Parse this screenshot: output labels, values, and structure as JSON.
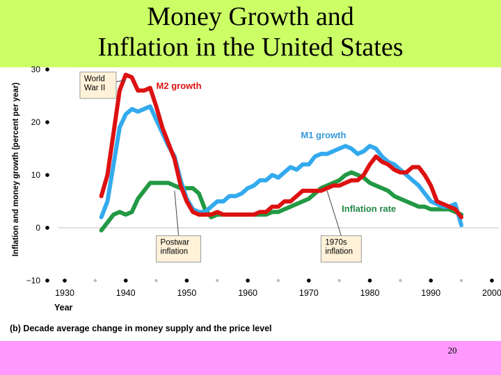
{
  "slide": {
    "title_line1": "Money Growth and",
    "title_line2": "Inflation in the United States",
    "caption": "(b) Decade average change in money supply and the price level",
    "slide_number": "20"
  },
  "chart_data": {
    "type": "line",
    "title": "Money Growth and Inflation in the United States",
    "xlabel": "Year",
    "ylabel": "Inflation and money growth (percent per year)",
    "xlim": [
      1925,
      2000
    ],
    "ylim": [
      -10,
      30
    ],
    "x_ticks": [
      1930,
      1940,
      1950,
      1960,
      1970,
      1980,
      1990,
      2000
    ],
    "y_ticks": [
      -10,
      0,
      10,
      20,
      30
    ],
    "grid": "zero-line",
    "series": [
      {
        "name": "M2 growth",
        "color": "#dd1111",
        "points": [
          [
            1936,
            6
          ],
          [
            1937,
            10
          ],
          [
            1938,
            18
          ],
          [
            1939,
            26
          ],
          [
            1940,
            29
          ],
          [
            1941,
            28.5
          ],
          [
            1942,
            26
          ],
          [
            1943,
            26
          ],
          [
            1944,
            26.5
          ],
          [
            1945,
            23
          ],
          [
            1946,
            19
          ],
          [
            1947,
            16
          ],
          [
            1948,
            13
          ],
          [
            1949,
            8
          ],
          [
            1950,
            5
          ],
          [
            1951,
            3
          ],
          [
            1952,
            2.5
          ],
          [
            1953,
            2.5
          ],
          [
            1954,
            2.5
          ],
          [
            1955,
            3
          ],
          [
            1956,
            2.5
          ],
          [
            1957,
            2.5
          ],
          [
            1958,
            2.5
          ],
          [
            1959,
            2.5
          ],
          [
            1960,
            2.5
          ],
          [
            1961,
            2.5
          ],
          [
            1962,
            3
          ],
          [
            1963,
            3
          ],
          [
            1964,
            4
          ],
          [
            1965,
            4
          ],
          [
            1966,
            5
          ],
          [
            1967,
            5
          ],
          [
            1968,
            6
          ],
          [
            1969,
            7
          ],
          [
            1970,
            7
          ],
          [
            1971,
            7
          ],
          [
            1972,
            7
          ],
          [
            1973,
            7.5
          ],
          [
            1974,
            8
          ],
          [
            1975,
            8
          ],
          [
            1976,
            8.5
          ],
          [
            1977,
            9
          ],
          [
            1978,
            9
          ],
          [
            1979,
            10
          ],
          [
            1980,
            12
          ],
          [
            1981,
            13.5
          ],
          [
            1982,
            12.5
          ],
          [
            1983,
            12
          ],
          [
            1984,
            11
          ],
          [
            1985,
            10.5
          ],
          [
            1986,
            10.5
          ],
          [
            1987,
            11.5
          ],
          [
            1988,
            11.5
          ],
          [
            1989,
            10
          ],
          [
            1990,
            8
          ],
          [
            1991,
            5
          ],
          [
            1992,
            4.5
          ],
          [
            1993,
            4
          ],
          [
            1994,
            3.5
          ],
          [
            1995,
            2
          ]
        ]
      },
      {
        "name": "M1 growth",
        "color": "#33aaee",
        "points": [
          [
            1936,
            2
          ],
          [
            1937,
            5
          ],
          [
            1938,
            12
          ],
          [
            1939,
            19
          ],
          [
            1940,
            21.5
          ],
          [
            1941,
            22.5
          ],
          [
            1942,
            22
          ],
          [
            1943,
            22.5
          ],
          [
            1944,
            23
          ],
          [
            1945,
            20.5
          ],
          [
            1946,
            18
          ],
          [
            1947,
            15.5
          ],
          [
            1948,
            13.5
          ],
          [
            1949,
            9
          ],
          [
            1950,
            5.5
          ],
          [
            1951,
            3.5
          ],
          [
            1952,
            3
          ],
          [
            1953,
            3
          ],
          [
            1954,
            4
          ],
          [
            1955,
            5
          ],
          [
            1956,
            5
          ],
          [
            1957,
            6
          ],
          [
            1958,
            6
          ],
          [
            1959,
            6.5
          ],
          [
            1960,
            7.5
          ],
          [
            1961,
            8
          ],
          [
            1962,
            9
          ],
          [
            1963,
            9
          ],
          [
            1964,
            10
          ],
          [
            1965,
            9.5
          ],
          [
            1966,
            10.5
          ],
          [
            1967,
            11.5
          ],
          [
            1968,
            11
          ],
          [
            1969,
            12
          ],
          [
            1970,
            12
          ],
          [
            1971,
            13.5
          ],
          [
            1972,
            14
          ],
          [
            1973,
            14
          ],
          [
            1974,
            14.5
          ],
          [
            1975,
            15
          ],
          [
            1976,
            15.5
          ],
          [
            1977,
            15
          ],
          [
            1978,
            14
          ],
          [
            1979,
            14.5
          ],
          [
            1980,
            15.5
          ],
          [
            1981,
            15
          ],
          [
            1982,
            13.5
          ],
          [
            1983,
            12.5
          ],
          [
            1984,
            12
          ],
          [
            1985,
            11
          ],
          [
            1986,
            10
          ],
          [
            1987,
            9
          ],
          [
            1988,
            8
          ],
          [
            1989,
            6.5
          ],
          [
            1990,
            5
          ],
          [
            1991,
            4.5
          ],
          [
            1992,
            4
          ],
          [
            1993,
            4
          ],
          [
            1994,
            4.5
          ],
          [
            1995,
            0.5
          ]
        ]
      },
      {
        "name": "Inflation rate",
        "color": "#229944",
        "points": [
          [
            1936,
            -0.5
          ],
          [
            1937,
            1
          ],
          [
            1938,
            2.5
          ],
          [
            1939,
            3
          ],
          [
            1940,
            2.5
          ],
          [
            1941,
            3
          ],
          [
            1942,
            5.5
          ],
          [
            1943,
            7
          ],
          [
            1944,
            8.5
          ],
          [
            1945,
            8.5
          ],
          [
            1946,
            8.5
          ],
          [
            1947,
            8.5
          ],
          [
            1948,
            8
          ],
          [
            1949,
            7.5
          ],
          [
            1950,
            7.5
          ],
          [
            1951,
            7.5
          ],
          [
            1952,
            6.5
          ],
          [
            1953,
            3.5
          ],
          [
            1954,
            2
          ],
          [
            1955,
            2.5
          ],
          [
            1956,
            2.5
          ],
          [
            1957,
            2.5
          ],
          [
            1958,
            2.5
          ],
          [
            1959,
            2.5
          ],
          [
            1960,
            2.5
          ],
          [
            1961,
            2.5
          ],
          [
            1962,
            2.5
          ],
          [
            1963,
            2.5
          ],
          [
            1964,
            3
          ],
          [
            1965,
            3
          ],
          [
            1966,
            3.5
          ],
          [
            1967,
            4
          ],
          [
            1968,
            4.5
          ],
          [
            1969,
            5
          ],
          [
            1970,
            5.5
          ],
          [
            1971,
            6.5
          ],
          [
            1972,
            7.5
          ],
          [
            1973,
            8
          ],
          [
            1974,
            8.5
          ],
          [
            1975,
            9
          ],
          [
            1976,
            10
          ],
          [
            1977,
            10.5
          ],
          [
            1978,
            10
          ],
          [
            1979,
            9.5
          ],
          [
            1980,
            8.5
          ],
          [
            1981,
            8
          ],
          [
            1982,
            7.5
          ],
          [
            1983,
            7
          ],
          [
            1984,
            6
          ],
          [
            1985,
            5.5
          ],
          [
            1986,
            5
          ],
          [
            1987,
            4.5
          ],
          [
            1988,
            4
          ],
          [
            1989,
            4
          ],
          [
            1990,
            3.5
          ],
          [
            1991,
            3.5
          ],
          [
            1992,
            3.5
          ],
          [
            1993,
            3.5
          ],
          [
            1994,
            3
          ],
          [
            1995,
            2.5
          ]
        ]
      }
    ],
    "series_labels": [
      {
        "series": "M2 growth",
        "text": "M2 growth",
        "x": 1945,
        "y": 26.3,
        "color": "#dd1111"
      },
      {
        "series": "M1 growth",
        "text": "M1 growth",
        "x": 1968.7,
        "y": 17,
        "color": "#3399dd"
      },
      {
        "series": "Inflation rate",
        "text": "Inflation rate",
        "x": 1975.4,
        "y": 3,
        "color": "#228844"
      }
    ],
    "annotations": [
      {
        "name": "world-war-ii",
        "lines": [
          "World",
          "War II"
        ],
        "x": 1932.5,
        "y": 29.5,
        "target": [
          1940,
          28
        ]
      },
      {
        "name": "postwar-inflation",
        "lines": [
          "Postwar",
          "inflation"
        ],
        "x": 1945,
        "y": -1.5,
        "target": [
          1948,
          7
        ]
      },
      {
        "name": "1970s-inflation",
        "lines": [
          "1970s",
          "inflation"
        ],
        "x": 1972,
        "y": -1.5,
        "target": [
          1973,
          7
        ]
      }
    ]
  }
}
